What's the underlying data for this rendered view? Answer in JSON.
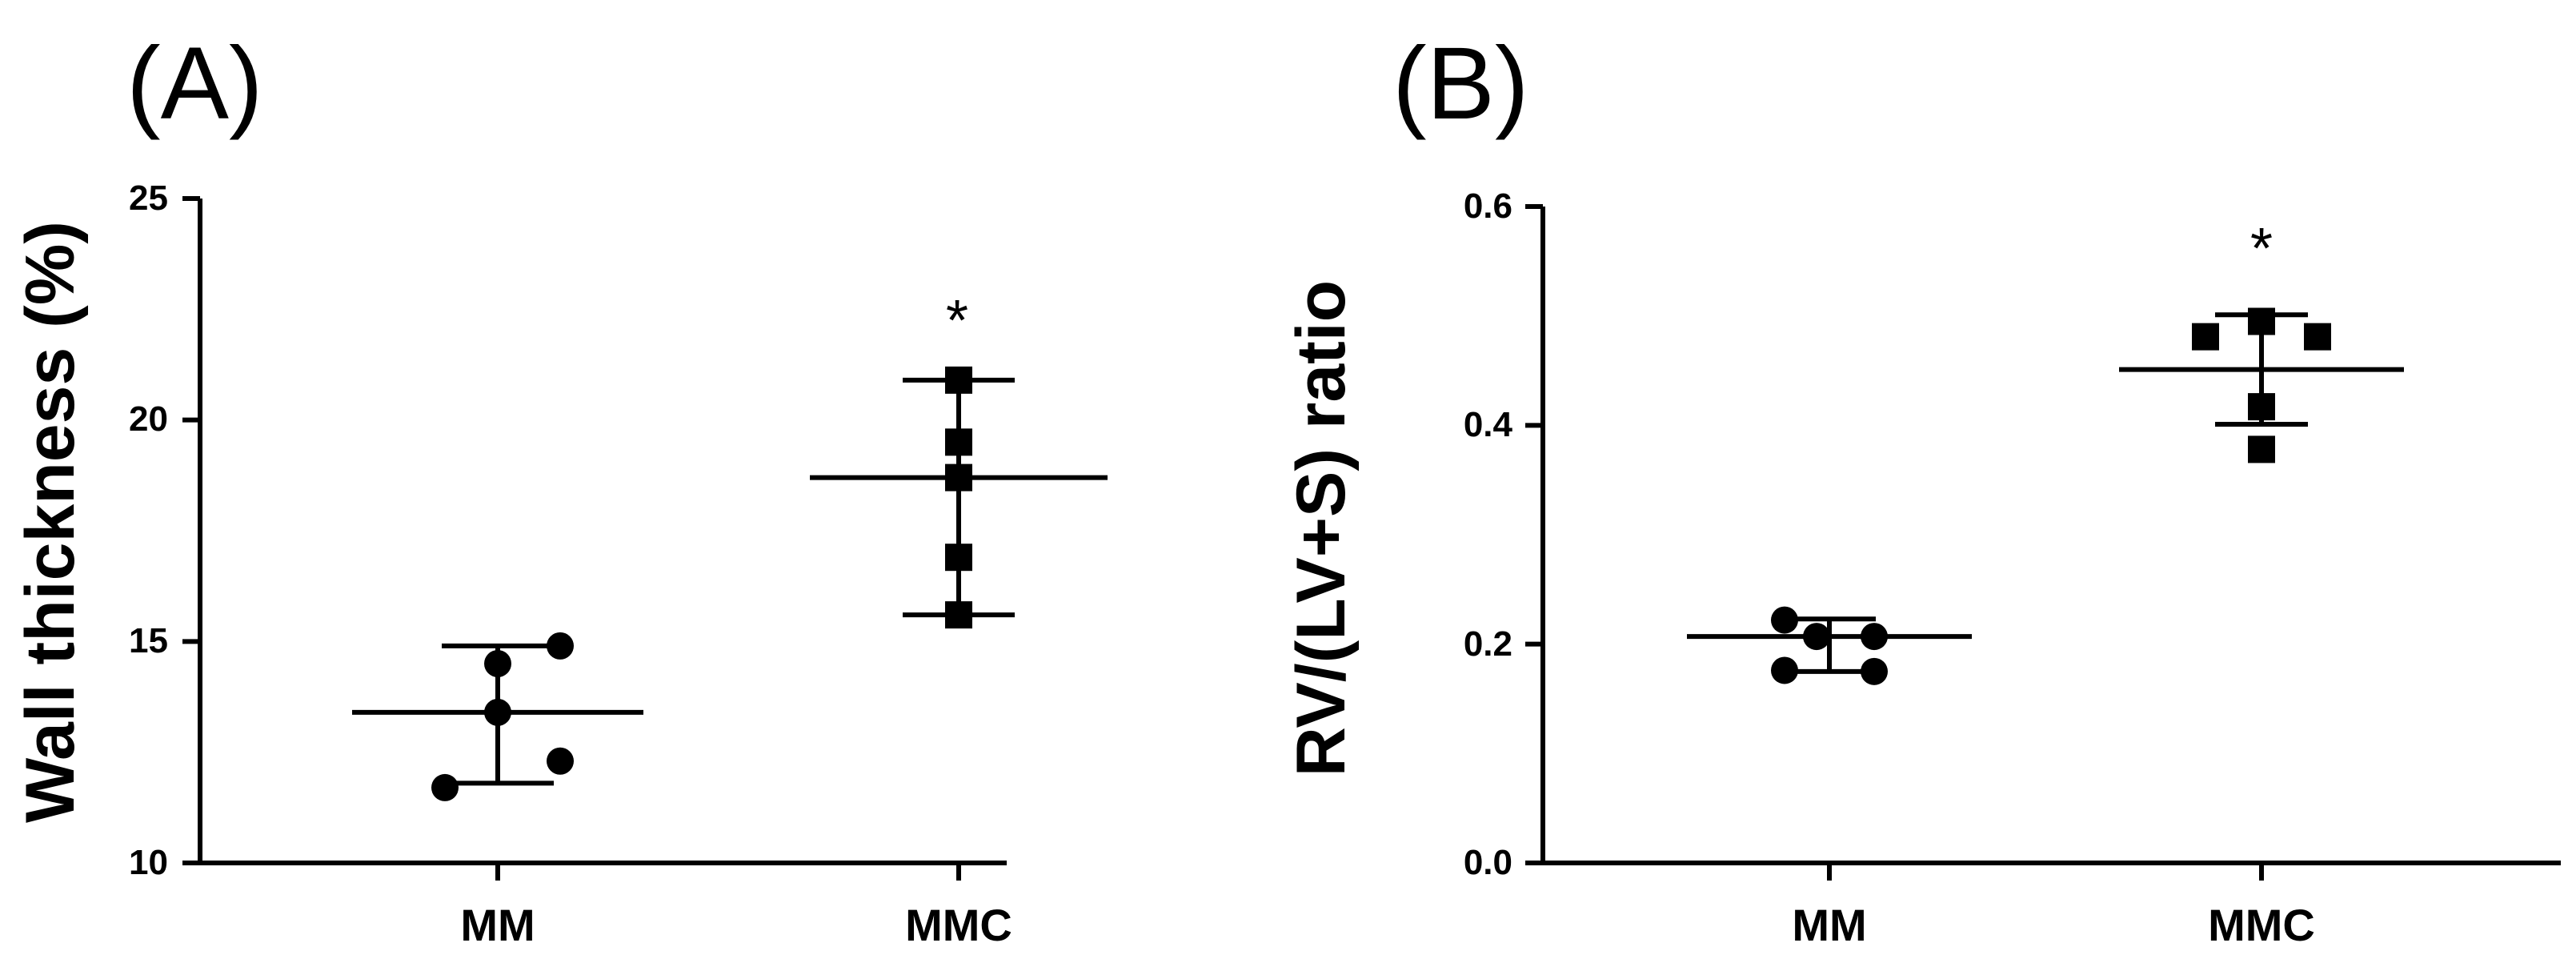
{
  "chart_data": [
    {
      "type": "scatter",
      "panel_label": "(A)",
      "ylabel": "Wall thickness (%)",
      "xlabel": "",
      "ylim": [
        10,
        25
      ],
      "yticks": [
        "10",
        "15",
        "20",
        "25"
      ],
      "categories": [
        "MM",
        "MMC"
      ],
      "groups": [
        {
          "category": "MM",
          "marker": "circle",
          "points": [
            14.9,
            14.5,
            13.4,
            12.3,
            11.7
          ],
          "mean": 13.4,
          "sd_low": 11.8,
          "sd_high": 14.9,
          "annotation": ""
        },
        {
          "category": "MMC",
          "marker": "square",
          "points": [
            20.9,
            19.5,
            18.7,
            16.9,
            15.6
          ],
          "mean": 18.7,
          "sd_low": 15.6,
          "sd_high": 20.9,
          "annotation": "*"
        }
      ]
    },
    {
      "type": "scatter",
      "panel_label": "(B)",
      "ylabel": "RV/(LV+S) ratio",
      "xlabel": "",
      "ylim": [
        0.0,
        0.6
      ],
      "yticks": [
        "0.0",
        "0.2",
        "0.4",
        "0.6"
      ],
      "categories": [
        "MM",
        "MMC"
      ],
      "groups": [
        {
          "category": "MM",
          "marker": "circle",
          "points": [
            0.222,
            0.207,
            0.207,
            0.176,
            0.175
          ],
          "mean": 0.207,
          "sd_low": 0.175,
          "sd_high": 0.223,
          "annotation": ""
        },
        {
          "category": "MMC",
          "marker": "square",
          "points": [
            0.495,
            0.481,
            0.481,
            0.417,
            0.378
          ],
          "mean": 0.451,
          "sd_low": 0.401,
          "sd_high": 0.501,
          "annotation": "*"
        }
      ]
    }
  ]
}
